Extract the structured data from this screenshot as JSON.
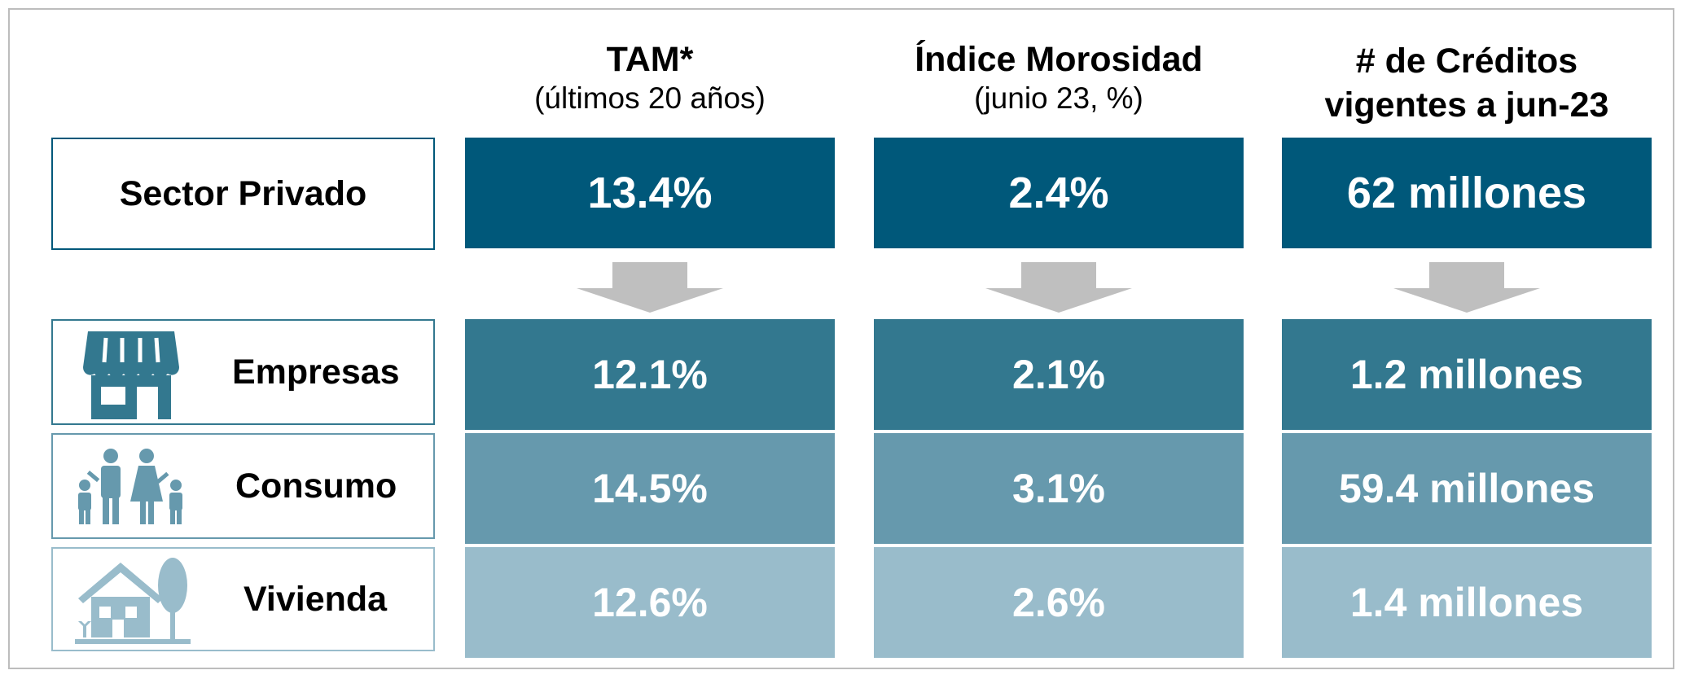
{
  "table": {
    "columns": [
      {
        "title": "TAM*",
        "subtitle": "(últimos 20 años)"
      },
      {
        "title": "Índice Morosidad",
        "subtitle": "(junio 23, %)"
      },
      {
        "title": "# de Créditos vigentes a jun-23"
      }
    ],
    "rows": [
      {
        "label": "Sector Privado",
        "values": [
          "13.4%",
          "2.4%",
          "62 millones"
        ]
      },
      {
        "label": "Empresas",
        "values": [
          "12.1%",
          "2.1%",
          "1.2 millones"
        ]
      },
      {
        "label": "Consumo",
        "values": [
          "14.5%",
          "3.1%",
          "59.4 millones"
        ]
      },
      {
        "label": "Vivienda",
        "values": [
          "12.6%",
          "2.6%",
          "1.4 millones"
        ]
      }
    ]
  }
}
